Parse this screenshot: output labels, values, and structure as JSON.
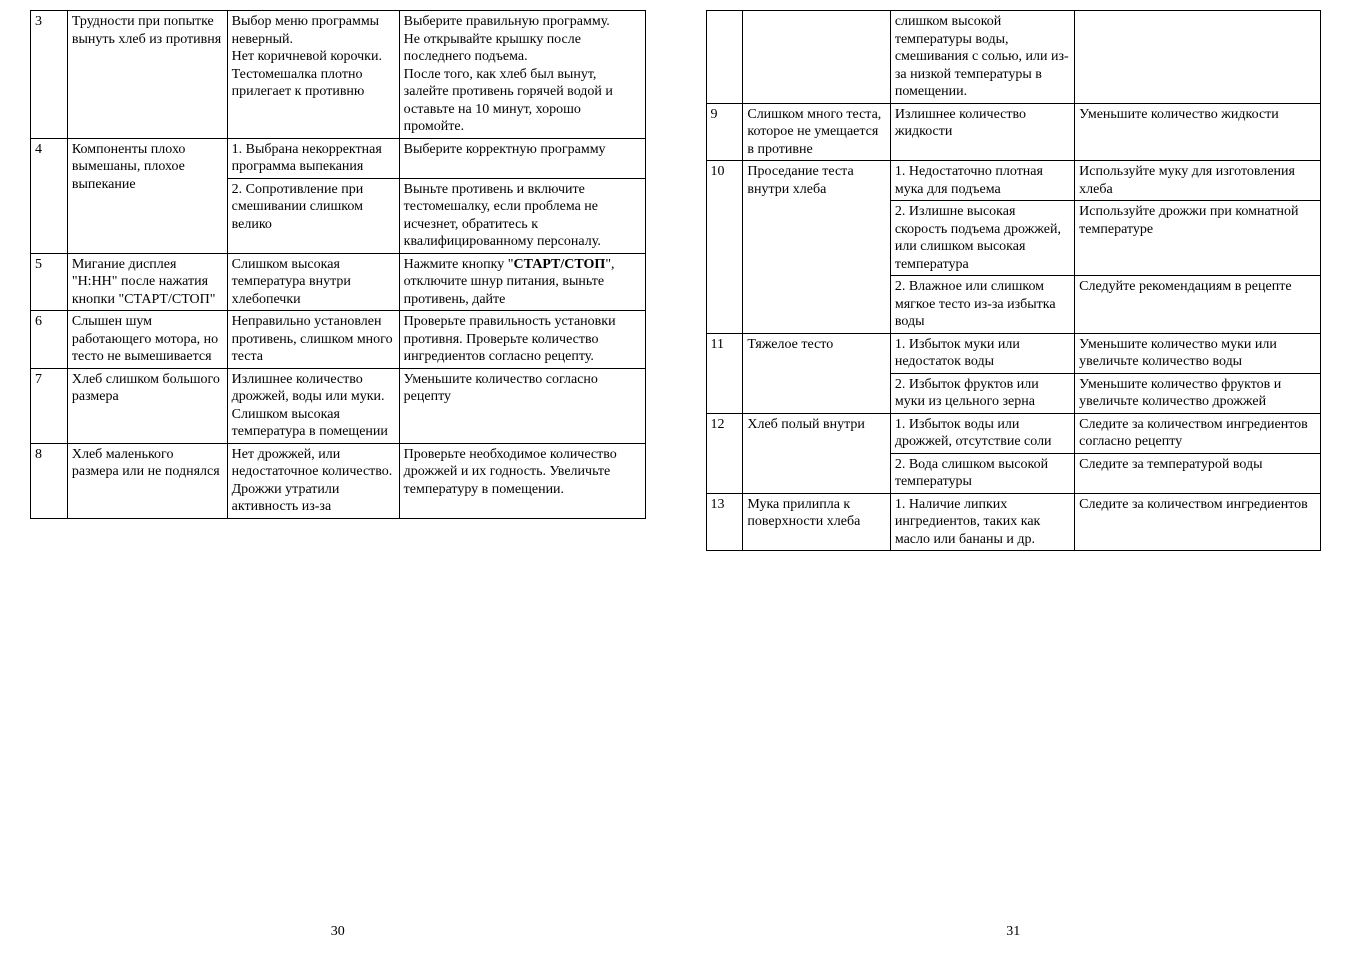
{
  "left": {
    "pageNumber": "30",
    "rows": [
      {
        "num": "3",
        "problem": "Трудности при попытке вынуть хлеб из противня",
        "cause": "Выбор меню программы неверный.\nНет коричневой корочки.\nТестомешалка плотно прилегает к противню",
        "action": "Выберите правильную программу.\nНе открывайте крышку после последнего подъема.\nПосле того, как хлеб был вынут, залейте противень горячей водой и оставьте на 10 минут, хорошо промойте."
      },
      {
        "num": "4",
        "problem": "Компоненты плохо вымешаны, плохое выпекание",
        "cells": [
          {
            "cause": "1. Выбрана некорректная программа выпекания",
            "action": "Выберите корректную программу"
          },
          {
            "cause": "2. Сопротивление при смешивании слишком велико",
            "action": "Выньте противень и включите тестомешалку, если проблема не исчезнет, обратитесь к квалифицированному персоналу."
          }
        ]
      },
      {
        "num": "5",
        "problem": "Мигание дисплея \"H:HH\" после нажатия кнопки \"СТАРТ/СТОП\"",
        "cause": "Слишком высокая температура внутри хлебопечки",
        "actionParts": [
          "Нажмите кнопку \"",
          "СТАРТ/СТОП",
          "\", отключите шнур питания, выньте противень, дайте"
        ]
      },
      {
        "num": "6",
        "problem": "Слышен шум работающего мотора, но тесто не вымешивается",
        "cause": "Неправильно установлен противень, слишком много теста",
        "action": "Проверьте правильность установки противня. Проверьте количество ингредиентов согласно рецепту."
      },
      {
        "num": "7",
        "problem": "Хлеб слишком большого размера",
        "cause": "Излишнее количество дрожжей, воды или муки.\nСлишком высокая температура в помещении",
        "action": "Уменьшите количество согласно рецепту"
      },
      {
        "num": "8",
        "problem": "Хлеб маленького размера или не поднялся",
        "cause": "Нет дрожжей, или недостаточное количество.\nДрожжи утратили активность из-за",
        "action": "Проверьте необходимое количество дрожжей и их годность. Увеличьте температуру в помещении."
      }
    ]
  },
  "right": {
    "pageNumber": "31",
    "rows": [
      {
        "num": "",
        "problem": "",
        "cause": "слишком высокой температуры воды, смешивания с солью, или из-за низкой температуры в помещении.",
        "action": ""
      },
      {
        "num": "9",
        "problem": "Слишком много теста, которое не умещается в противне",
        "cause": "Излишнее количество жидкости",
        "action": "Уменьшите количество жидкости"
      },
      {
        "num": "10",
        "problem": "Проседание теста внутри хлеба",
        "cells": [
          {
            "cause": "1. Недостаточно плотная мука для подъема",
            "action": "Используйте муку для изготовления хлеба"
          },
          {
            "cause": "2. Излишне высокая скорость подъема дрожжей, или слишком высокая температура",
            "action": "Используйте дрожжи при комнатной температуре"
          },
          {
            "cause": "2. Влажное или слишком мягкое тесто из-за избытка воды",
            "action": "Следуйте рекомендациям  в рецепте"
          }
        ]
      },
      {
        "num": "11",
        "problem": "Тяжелое тесто",
        "cells": [
          {
            "cause": "1. Избыток муки или недостаток воды",
            "action": "Уменьшите количество муки или увеличьте количество воды"
          },
          {
            "cause": "2. Избыток фруктов или муки из цельного зерна",
            "action": "Уменьшите количество фруктов и увеличьте количество дрожжей"
          }
        ]
      },
      {
        "num": "12",
        "problem": "Хлеб полый внутри",
        "cells": [
          {
            "cause": "1. Избыток воды или дрожжей, отсутствие соли",
            "action": "Следите за количеством ингредиентов согласно рецепту"
          },
          {
            "cause": "2. Вода слишком высокой температуры",
            "action": "Следите за температурой воды"
          }
        ]
      },
      {
        "num": "13",
        "problem": "Мука прилипла к поверхности хлеба",
        "cause": "1. Наличие липких ингредиентов, таких как масло или бананы и др.",
        "action": "Следите за количеством ингредиентов"
      }
    ]
  }
}
